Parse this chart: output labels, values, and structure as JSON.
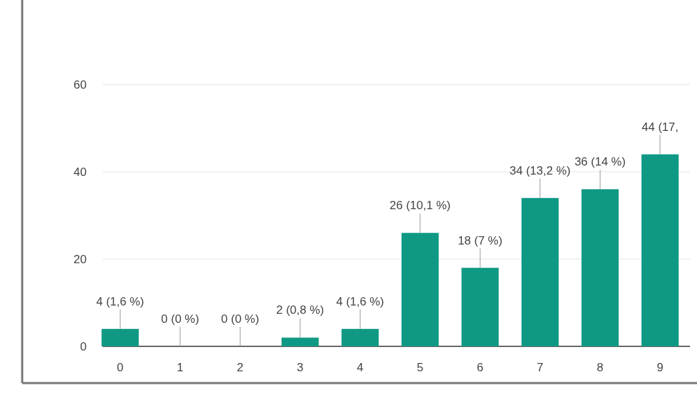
{
  "chart_data": {
    "type": "bar",
    "categories": [
      "0",
      "1",
      "2",
      "3",
      "4",
      "5",
      "6",
      "7",
      "8",
      "9"
    ],
    "values": [
      4,
      0,
      0,
      2,
      4,
      26,
      18,
      34,
      36,
      44
    ],
    "value_labels": [
      "4 (1,6 %)",
      "0 (0 %)",
      "0 (0 %)",
      "2 (0,8 %)",
      "4 (1,6 %)",
      "26 (10,1 %)",
      "18 (7 %)",
      "34 (13,2 %)",
      "36 (14 %)",
      "44 (17,"
    ],
    "color": "#0f9985",
    "ylim": [
      0,
      60
    ],
    "yticks": [
      0,
      20,
      40,
      60
    ],
    "grid": "y"
  }
}
